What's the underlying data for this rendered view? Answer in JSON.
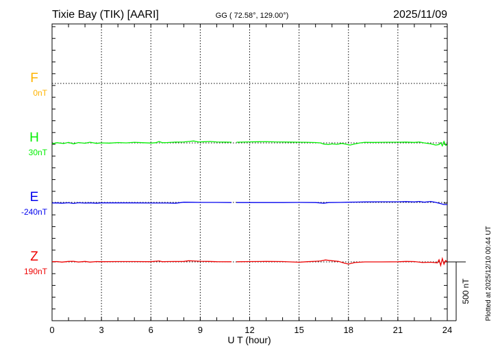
{
  "chart_data": {
    "type": "line",
    "title": "Tixie Bay (TIK)  [AARI]",
    "coords": "GG ( 72.58°, 129.00°)",
    "date": "2025/11/09",
    "xlabel": "U T (hour)",
    "xlim": [
      0,
      24
    ],
    "xticks": [
      "0",
      "3",
      "6",
      "9",
      "12",
      "15",
      "18",
      "21",
      "24"
    ],
    "scale_label": "500 nT",
    "plotted_note": "Plotted at 2025/12/10 00:44 UT",
    "grid": true,
    "series": [
      {
        "name": "F",
        "baseline_label": "0nT",
        "color": "#ffb300",
        "points": []
      },
      {
        "name": "H",
        "baseline_label": "30nT",
        "color": "#00ee00",
        "points": [
          [
            0,
            -8
          ],
          [
            0.3,
            2
          ],
          [
            0.7,
            -5
          ],
          [
            1,
            4
          ],
          [
            1.3,
            -8
          ],
          [
            1.6,
            3
          ],
          [
            2,
            -3
          ],
          [
            2.3,
            6
          ],
          [
            2.7,
            -4
          ],
          [
            3,
            0
          ],
          [
            3.5,
            -2
          ],
          [
            4,
            3
          ],
          [
            4.5,
            0
          ],
          [
            5,
            5
          ],
          [
            5.5,
            2
          ],
          [
            6,
            -1
          ],
          [
            6.3,
            2
          ],
          [
            6.5,
            12
          ],
          [
            6.7,
            2
          ],
          [
            7,
            3
          ],
          [
            7.5,
            7
          ],
          [
            8,
            8
          ],
          [
            8.3,
            12
          ],
          [
            8.6,
            16
          ],
          [
            8.9,
            8
          ],
          [
            9.2,
            10
          ],
          [
            9.6,
            12
          ],
          [
            10,
            8
          ],
          [
            10.5,
            7
          ],
          [
            10.9,
            6
          ],
          [
            11,
            null
          ],
          [
            11.2,
            6
          ],
          [
            12,
            9
          ],
          [
            12.5,
            10
          ],
          [
            13,
            11
          ],
          [
            13.5,
            9
          ],
          [
            14,
            8
          ],
          [
            14.5,
            7
          ],
          [
            15,
            6
          ],
          [
            15.5,
            5
          ],
          [
            16,
            3
          ],
          [
            16.3,
            0
          ],
          [
            16.5,
            -10
          ],
          [
            16.8,
            -14
          ],
          [
            17,
            -8
          ],
          [
            17.3,
            -12
          ],
          [
            17.6,
            -4
          ],
          [
            17.9,
            -12
          ],
          [
            18.1,
            -18
          ],
          [
            18.4,
            -8
          ],
          [
            18.7,
            0
          ],
          [
            19,
            5
          ],
          [
            19.5,
            4
          ],
          [
            20,
            5
          ],
          [
            20.5,
            6
          ],
          [
            21,
            6
          ],
          [
            21.5,
            7
          ],
          [
            22,
            4
          ],
          [
            22.3,
            8
          ],
          [
            22.6,
            0
          ],
          [
            23,
            -8
          ],
          [
            23.3,
            -18
          ],
          [
            23.5,
            -14
          ],
          [
            23.6,
            2
          ],
          [
            23.7,
            -25
          ],
          [
            23.8,
            12
          ],
          [
            23.9,
            -20
          ],
          [
            24,
            -18
          ]
        ]
      },
      {
        "name": "E",
        "baseline_label": "-240nT",
        "color": "#0000ee",
        "points": [
          [
            0,
            -5
          ],
          [
            0.3,
            -4
          ],
          [
            0.6,
            -7
          ],
          [
            1,
            -3
          ],
          [
            1.3,
            -9
          ],
          [
            1.6,
            -3
          ],
          [
            2,
            -6
          ],
          [
            2.3,
            -4
          ],
          [
            2.7,
            -7
          ],
          [
            3,
            -4
          ],
          [
            4,
            -4
          ],
          [
            5,
            -4
          ],
          [
            6,
            -5
          ],
          [
            7,
            -5
          ],
          [
            7.5,
            -7
          ],
          [
            7.8,
            -2
          ],
          [
            8,
            2
          ],
          [
            8.5,
            1
          ],
          [
            9,
            0
          ],
          [
            10,
            0
          ],
          [
            10.9,
            -1
          ],
          [
            11,
            null
          ],
          [
            11.2,
            -1
          ],
          [
            12,
            -1
          ],
          [
            13,
            -1
          ],
          [
            14,
            -1
          ],
          [
            15,
            0
          ],
          [
            16,
            -1
          ],
          [
            16.5,
            -7
          ],
          [
            16.8,
            -1
          ],
          [
            17.5,
            0
          ],
          [
            18,
            2
          ],
          [
            18.5,
            3
          ],
          [
            19,
            4
          ],
          [
            20,
            5
          ],
          [
            21,
            5
          ],
          [
            21.5,
            7
          ],
          [
            22,
            4
          ],
          [
            22.3,
            8
          ],
          [
            22.6,
            2
          ],
          [
            23,
            8
          ],
          [
            23.3,
            0
          ],
          [
            23.6,
            -10
          ],
          [
            23.8,
            -18
          ],
          [
            24,
            -18
          ]
        ]
      },
      {
        "name": "Z",
        "baseline_label": "190nT",
        "color": "#ee0000",
        "points": [
          [
            0,
            2
          ],
          [
            0.3,
            3
          ],
          [
            0.6,
            -2
          ],
          [
            1,
            4
          ],
          [
            1.3,
            5
          ],
          [
            1.6,
            -1
          ],
          [
            2,
            4
          ],
          [
            2.3,
            -2
          ],
          [
            2.7,
            3
          ],
          [
            3,
            2
          ],
          [
            4,
            3
          ],
          [
            5,
            3
          ],
          [
            6,
            2
          ],
          [
            6.5,
            8
          ],
          [
            6.7,
            2
          ],
          [
            7,
            3
          ],
          [
            8,
            4
          ],
          [
            8.3,
            10
          ],
          [
            8.6,
            8
          ],
          [
            9,
            5
          ],
          [
            9.5,
            4
          ],
          [
            10,
            2
          ],
          [
            10.9,
            1
          ],
          [
            11,
            null
          ],
          [
            11.2,
            1
          ],
          [
            12,
            3
          ],
          [
            13,
            4
          ],
          [
            14,
            3
          ],
          [
            15,
            -3
          ],
          [
            15.5,
            2
          ],
          [
            16,
            5
          ],
          [
            16.3,
            8
          ],
          [
            16.6,
            16
          ],
          [
            17,
            10
          ],
          [
            17.4,
            4
          ],
          [
            17.8,
            -12
          ],
          [
            18,
            -18
          ],
          [
            18.4,
            -5
          ],
          [
            19,
            0
          ],
          [
            20,
            0
          ],
          [
            21,
            1
          ],
          [
            21.5,
            4
          ],
          [
            22,
            3
          ],
          [
            22.5,
            -5
          ],
          [
            23,
            -3
          ],
          [
            23.4,
            -8
          ],
          [
            23.5,
            18
          ],
          [
            23.6,
            -30
          ],
          [
            23.7,
            28
          ],
          [
            23.8,
            -20
          ],
          [
            23.9,
            12
          ],
          [
            24,
            0
          ]
        ]
      }
    ]
  }
}
